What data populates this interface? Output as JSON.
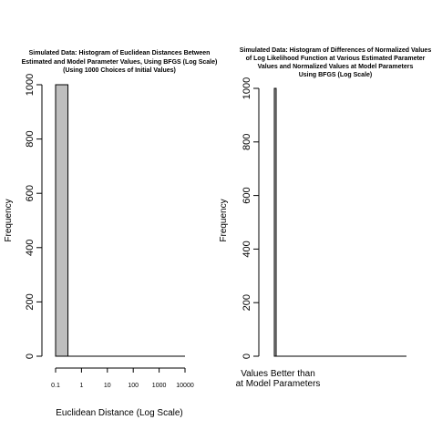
{
  "chart_data": [
    {
      "type": "bar",
      "title_lines": [
        "Simulated Data: Histogram of Euclidean Distances Between",
        "Estimated and Model Parameter Values, Using BFGS (Log Scale)",
        "(Using 1000 Choices of Initial Values)"
      ],
      "xlabel": "Euclidean Distance (Log Scale)",
      "ylabel": "Frequency",
      "x_tick_labels": [
        "0.1",
        "1",
        "10",
        "100",
        "1000",
        "10000"
      ],
      "y_tick_labels": [
        "0",
        "200",
        "400",
        "600",
        "800",
        "1000"
      ],
      "y_ticks": [
        0,
        200,
        400,
        600,
        800,
        1000
      ],
      "ylim": [
        0,
        1000
      ],
      "x_scale": "log",
      "bins": [
        {
          "from": 0.1,
          "to": 0.3,
          "count": 1000
        }
      ],
      "bar_color": "#bebebe",
      "grid": false
    },
    {
      "type": "bar",
      "title_lines": [
        "Simulated Data: Histogram of Differences of Normalized Values",
        "of Log Likelihood Function at Various Estimated Parameter",
        "Values and Normalized Values at Model Parameters",
        "Using BFGS (Log Scale)"
      ],
      "xlabel": "",
      "ylabel": "Frequency",
      "x_tick_labels": [],
      "x_annotation_lines": [
        "Values Better than",
        "at Model Parameters"
      ],
      "y_tick_labels": [
        "0",
        "200",
        "400",
        "600",
        "800",
        "1000"
      ],
      "y_ticks": [
        0,
        200,
        400,
        600,
        800,
        1000
      ],
      "ylim": [
        0,
        1000
      ],
      "bins": [
        {
          "position": 0.0,
          "count": 1000
        }
      ],
      "bar_color": "#bebebe",
      "grid": false
    }
  ]
}
